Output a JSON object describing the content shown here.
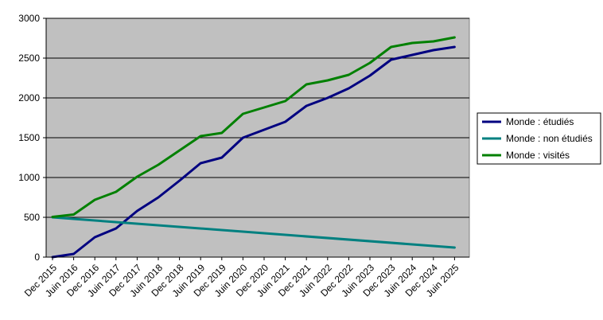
{
  "chart_data": {
    "type": "line",
    "title": "",
    "xlabel": "",
    "ylabel": "",
    "ylim": [
      0,
      3000
    ],
    "yticks": [
      0,
      500,
      1000,
      1500,
      2000,
      2500,
      3000
    ],
    "xticks": [
      "Dec 2015",
      "Juin 2016",
      "Dec 2016",
      "Juin 2017",
      "Dec 2017",
      "Juin 2018",
      "Dec 2018",
      "Juin 2019",
      "Dec 2019",
      "Juin 2020",
      "Dec 2020",
      "Juin 2021",
      "Dec 2021",
      "Juin 2022",
      "Dec 2022",
      "Juin 2023",
      "Dec 2023",
      "Juin 2024",
      "Dec 2024",
      "Juin 2025"
    ],
    "grid": "horizontal",
    "background": "#C0C0C0",
    "legend_position": "right",
    "series": [
      {
        "name": "Monde : étudiés",
        "color": "#000080",
        "points": [
          [
            0,
            0
          ],
          [
            1,
            40
          ],
          [
            2,
            250
          ],
          [
            3,
            360
          ],
          [
            4,
            580
          ],
          [
            5,
            750
          ],
          [
            6,
            960
          ],
          [
            7,
            1180
          ],
          [
            8,
            1250
          ],
          [
            9,
            1500
          ],
          [
            10,
            1600
          ],
          [
            11,
            1700
          ],
          [
            12,
            1900
          ],
          [
            13,
            2000
          ],
          [
            14,
            2120
          ],
          [
            15,
            2280
          ],
          [
            16,
            2480
          ],
          [
            17,
            2540
          ],
          [
            18,
            2600
          ],
          [
            19,
            2640
          ]
        ]
      },
      {
        "name": "Monde : non étudiés",
        "color": "#008080",
        "points": [
          [
            0,
            500
          ],
          [
            19,
            120
          ]
        ]
      },
      {
        "name": "Monde : visités",
        "color": "#008000",
        "points": [
          [
            0,
            505
          ],
          [
            1,
            535
          ],
          [
            2,
            720
          ],
          [
            3,
            820
          ],
          [
            4,
            1010
          ],
          [
            5,
            1160
          ],
          [
            6,
            1340
          ],
          [
            7,
            1520
          ],
          [
            8,
            1560
          ],
          [
            9,
            1800
          ],
          [
            10,
            1880
          ],
          [
            11,
            1960
          ],
          [
            12,
            2170
          ],
          [
            13,
            2220
          ],
          [
            14,
            2290
          ],
          [
            15,
            2440
          ],
          [
            16,
            2640
          ],
          [
            17,
            2690
          ],
          [
            18,
            2710
          ],
          [
            19,
            2760
          ]
        ]
      }
    ]
  }
}
